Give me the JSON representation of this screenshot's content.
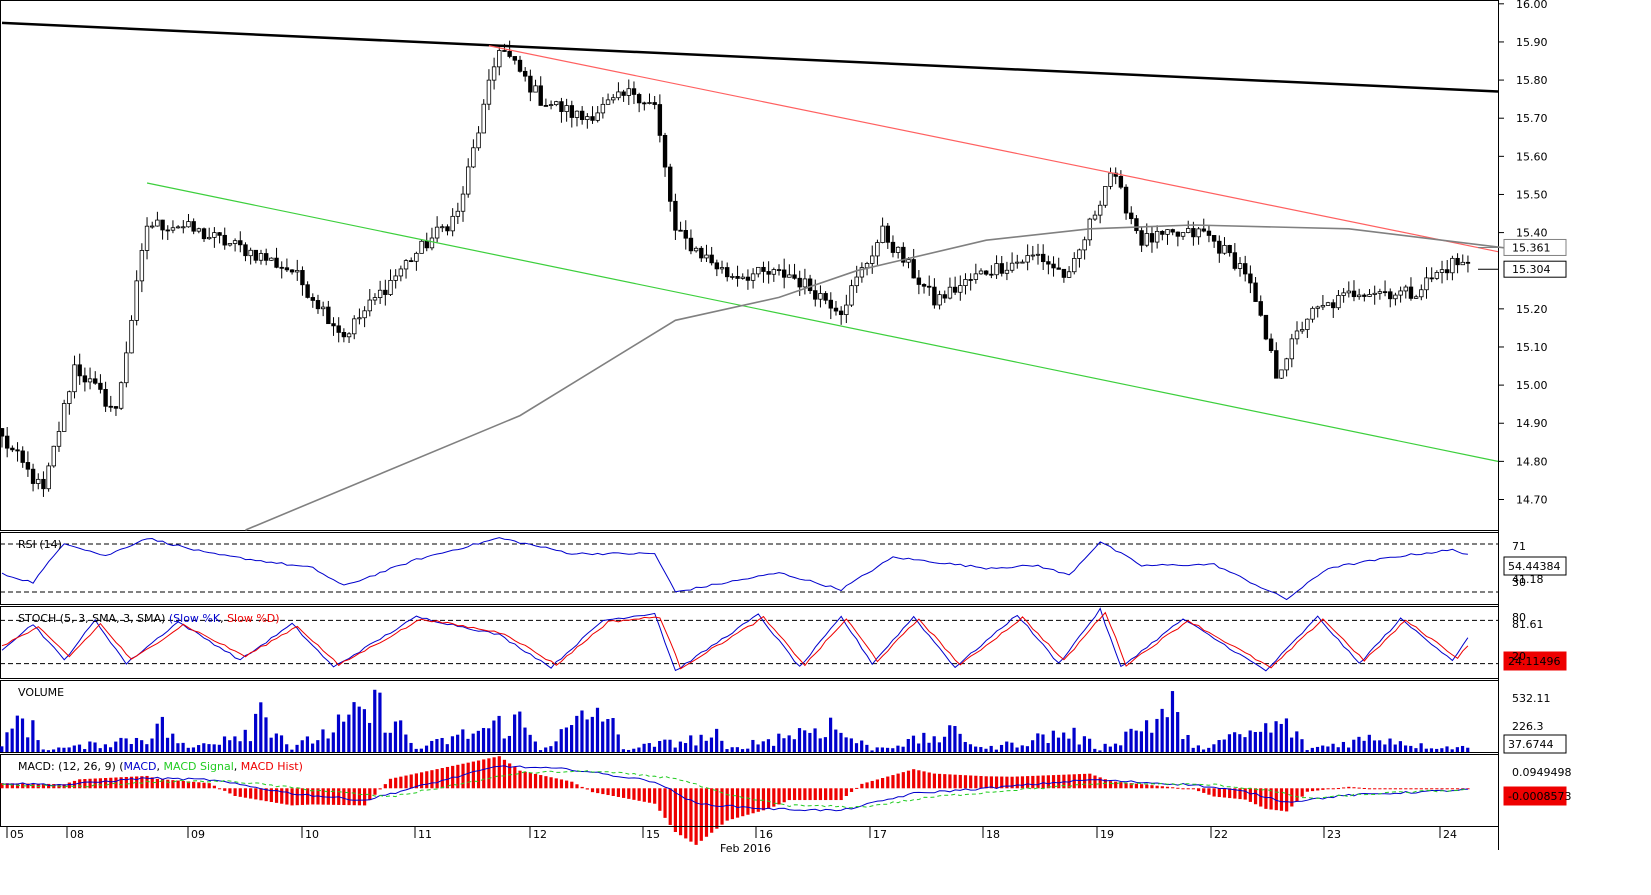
{
  "chart_data": {
    "type": "candlestick",
    "title": "",
    "x_period_label": "Feb 2016",
    "x_tick_labels": [
      "05",
      "08",
      "09",
      "10",
      "11",
      "12",
      "15",
      "16",
      "17",
      "18",
      "19",
      "22",
      "23",
      "24"
    ],
    "price_axis": {
      "ylim": [
        14.62,
        16.01
      ],
      "tick_labels": [
        "16.00",
        "15.90",
        "15.80",
        "15.70",
        "15.60",
        "15.50",
        "15.40",
        "15.20",
        "15.10",
        "15.00",
        "14.90",
        "14.80",
        "14.70"
      ],
      "markers": [
        {
          "label": "15.361",
          "value": 15.361,
          "color": "#808080"
        },
        {
          "label": "15.304",
          "value": 15.304,
          "color": "#000000"
        }
      ]
    },
    "candles": {
      "count": 290,
      "anchor_closes": [
        [
          0,
          14.86
        ],
        [
          8,
          14.72
        ],
        [
          14,
          15.05
        ],
        [
          22,
          14.93
        ],
        [
          28,
          15.42
        ],
        [
          34,
          15.42
        ],
        [
          48,
          15.35
        ],
        [
          56,
          15.3
        ],
        [
          66,
          15.13
        ],
        [
          78,
          15.32
        ],
        [
          88,
          15.45
        ],
        [
          96,
          15.89
        ],
        [
          104,
          15.75
        ],
        [
          112,
          15.7
        ],
        [
          122,
          15.77
        ],
        [
          126,
          15.73
        ],
        [
          130,
          15.4
        ],
        [
          140,
          15.29
        ],
        [
          152,
          15.29
        ],
        [
          162,
          15.2
        ],
        [
          170,
          15.4
        ],
        [
          180,
          15.22
        ],
        [
          190,
          15.3
        ],
        [
          200,
          15.34
        ],
        [
          206,
          15.28
        ],
        [
          214,
          15.56
        ],
        [
          220,
          15.38
        ],
        [
          232,
          15.4
        ],
        [
          240,
          15.3
        ],
        [
          246,
          15.03
        ],
        [
          252,
          15.18
        ],
        [
          262,
          15.25
        ],
        [
          272,
          15.24
        ],
        [
          280,
          15.32
        ],
        [
          289,
          15.304
        ]
      ]
    },
    "lines": [
      {
        "name": "",
        "color": "#000000",
        "from": [
          0,
          15.95
        ],
        "to": [
          290,
          15.77
        ]
      },
      {
        "name": "",
        "color": "#ff6060",
        "from": [
          94,
          15.89
        ],
        "to": [
          290,
          15.35
        ]
      },
      {
        "name": "",
        "color": "#3ccf3c",
        "from": [
          28,
          15.53
        ],
        "to": [
          290,
          14.8
        ]
      },
      {
        "name": "",
        "color": "#808080",
        "points": [
          [
            47,
            14.62
          ],
          [
            100,
            14.92
          ],
          [
            130,
            15.17
          ],
          [
            150,
            15.23
          ],
          [
            165,
            15.3
          ],
          [
            190,
            15.38
          ],
          [
            210,
            15.41
          ],
          [
            230,
            15.42
          ],
          [
            260,
            15.41
          ],
          [
            290,
            15.36
          ]
        ]
      }
    ],
    "panels": [
      {
        "name": "RSI (14)",
        "ylim": [
          20,
          80
        ],
        "levels": [
          70,
          30
        ],
        "scale_labels": [
          "71",
          "30"
        ],
        "current_label": "54.44384",
        "extra_label": "41.18",
        "series": [
          {
            "name": "RSI (14)",
            "color": "#0000cc",
            "anchors": [
              [
                0,
                45
              ],
              [
                6,
                38
              ],
              [
                12,
                71
              ],
              [
                20,
                60
              ],
              [
                28,
                75
              ],
              [
                40,
                62
              ],
              [
                60,
                50
              ],
              [
                66,
                35
              ],
              [
                80,
                57
              ],
              [
                96,
                75
              ],
              [
                110,
                62
              ],
              [
                126,
                62
              ],
              [
                130,
                30
              ],
              [
                150,
                46
              ],
              [
                162,
                32
              ],
              [
                172,
                59
              ],
              [
                190,
                50
              ],
              [
                200,
                52
              ],
              [
                206,
                44
              ],
              [
                212,
                72
              ],
              [
                220,
                52
              ],
              [
                234,
                53
              ],
              [
                244,
                32
              ],
              [
                248,
                24
              ],
              [
                256,
                50
              ],
              [
                270,
                60
              ],
              [
                280,
                65
              ],
              [
                289,
                54.4
              ]
            ]
          }
        ]
      },
      {
        "name": "STOCH (5, 3, SMA, 3, SMA)",
        "legend": [
          "Slow %K",
          "Slow %D"
        ],
        "ylim": [
          0,
          100
        ],
        "levels": [
          80,
          20
        ],
        "scale_labels": [
          "81.61",
          "80",
          "20"
        ],
        "current_label": "24.11496",
        "series": [
          {
            "name": "Slow %K",
            "color": "#0000cc",
            "anchors": [
              [
                0,
                40
              ],
              [
                6,
                75
              ],
              [
                12,
                25
              ],
              [
                18,
                80
              ],
              [
                24,
                20
              ],
              [
                34,
                78
              ],
              [
                46,
                25
              ],
              [
                56,
                75
              ],
              [
                64,
                15
              ],
              [
                80,
                85
              ],
              [
                96,
                60
              ],
              [
                106,
                15
              ],
              [
                116,
                80
              ],
              [
                126,
                90
              ],
              [
                130,
                10
              ],
              [
                146,
                88
              ],
              [
                154,
                15
              ],
              [
                162,
                85
              ],
              [
                168,
                20
              ],
              [
                176,
                85
              ],
              [
                184,
                15
              ],
              [
                196,
                88
              ],
              [
                204,
                20
              ],
              [
                212,
                95
              ],
              [
                216,
                15
              ],
              [
                228,
                82
              ],
              [
                244,
                10
              ],
              [
                254,
                85
              ],
              [
                262,
                20
              ],
              [
                270,
                82
              ],
              [
                280,
                25
              ],
              [
                286,
                85
              ],
              [
                289,
                24
              ]
            ]
          },
          {
            "name": "Slow %D",
            "color": "#ee0000",
            "anchors": [
              [
                0,
                45
              ],
              [
                7,
                70
              ],
              [
                13,
                30
              ],
              [
                19,
                75
              ],
              [
                25,
                25
              ],
              [
                35,
                74
              ],
              [
                47,
                30
              ],
              [
                57,
                72
              ],
              [
                65,
                18
              ],
              [
                81,
                82
              ],
              [
                97,
                62
              ],
              [
                107,
                18
              ],
              [
                117,
                78
              ],
              [
                127,
                85
              ],
              [
                131,
                14
              ],
              [
                147,
                84
              ],
              [
                155,
                18
              ],
              [
                163,
                82
              ],
              [
                169,
                24
              ],
              [
                177,
                82
              ],
              [
                185,
                18
              ],
              [
                197,
                84
              ],
              [
                205,
                24
              ],
              [
                213,
                92
              ],
              [
                217,
                18
              ],
              [
                229,
                80
              ],
              [
                245,
                14
              ],
              [
                255,
                82
              ],
              [
                263,
                24
              ],
              [
                271,
                80
              ],
              [
                281,
                28
              ],
              [
                287,
                82
              ],
              [
                289,
                30
              ]
            ]
          }
        ]
      },
      {
        "name": "VOLUME",
        "ylim": [
          0,
          700
        ],
        "scale_labels": [
          "532.11",
          "226.3"
        ],
        "current_label": "37.6744",
        "color": "#0000cc",
        "anchors": [
          [
            0,
            60
          ],
          [
            4,
            520
          ],
          [
            8,
            40
          ],
          [
            14,
            60
          ],
          [
            28,
            200
          ],
          [
            30,
            380
          ],
          [
            36,
            40
          ],
          [
            48,
            320
          ],
          [
            50,
            600
          ],
          [
            56,
            40
          ],
          [
            72,
            560
          ],
          [
            74,
            560
          ],
          [
            80,
            40
          ],
          [
            96,
            350
          ],
          [
            100,
            400
          ],
          [
            104,
            40
          ],
          [
            116,
            580
          ],
          [
            120,
            40
          ],
          [
            138,
            200
          ],
          [
            140,
            30
          ],
          [
            160,
            360
          ],
          [
            162,
            250
          ],
          [
            168,
            40
          ],
          [
            184,
            240
          ],
          [
            190,
            40
          ],
          [
            206,
            260
          ],
          [
            212,
            40
          ],
          [
            226,
            560
          ],
          [
            230,
            40
          ],
          [
            248,
            360
          ],
          [
            252,
            40
          ],
          [
            266,
            200
          ],
          [
            274,
            80
          ],
          [
            289,
            40
          ]
        ]
      },
      {
        "name": "MACD: (12, 26, 9)",
        "legend": [
          "MACD",
          "MACD Signal",
          "MACD Hist"
        ],
        "ylim": [
          -0.22,
          0.2
        ],
        "scale_labels": [
          "0.0949498"
        ],
        "current_label": "-0.0008573",
        "series": [
          {
            "name": "MACD",
            "color": "#0000cc",
            "anchors": [
              [
                0,
                0.03
              ],
              [
                12,
                0.02
              ],
              [
                28,
                0.06
              ],
              [
                40,
                0.05
              ],
              [
                56,
                -0.03
              ],
              [
                70,
                -0.07
              ],
              [
                96,
                0.13
              ],
              [
                110,
                0.11
              ],
              [
                126,
                0.04
              ],
              [
                134,
                -0.09
              ],
              [
                148,
                -0.12
              ],
              [
                162,
                -0.13
              ],
              [
                176,
                -0.03
              ],
              [
                190,
                0.0
              ],
              [
                210,
                0.05
              ],
              [
                230,
                0.02
              ],
              [
                240,
                -0.02
              ],
              [
                248,
                -0.08
              ],
              [
                260,
                -0.04
              ],
              [
                289,
                0.0
              ]
            ]
          },
          {
            "name": "MACD Signal",
            "color": "#22cc22",
            "dashed": true,
            "anchors": [
              [
                0,
                0.02
              ],
              [
                15,
                0.01
              ],
              [
                30,
                0.04
              ],
              [
                45,
                0.04
              ],
              [
                60,
                -0.01
              ],
              [
                75,
                -0.05
              ],
              [
                100,
                0.09
              ],
              [
                114,
                0.1
              ],
              [
                130,
                0.06
              ],
              [
                140,
                -0.04
              ],
              [
                152,
                -0.1
              ],
              [
                166,
                -0.11
              ],
              [
                180,
                -0.05
              ],
              [
                195,
                -0.01
              ],
              [
                214,
                0.03
              ],
              [
                234,
                0.02
              ],
              [
                244,
                -0.01
              ],
              [
                252,
                -0.06
              ],
              [
                266,
                -0.03
              ],
              [
                289,
                0.0
              ]
            ]
          },
          {
            "name": "MACD Hist",
            "color": "#ee0000",
            "type": "bar"
          }
        ]
      }
    ]
  }
}
